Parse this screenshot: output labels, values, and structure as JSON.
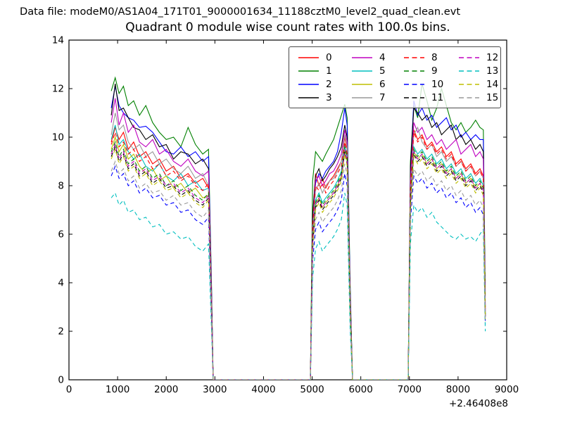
{
  "figure": {
    "background": "#ffffff",
    "header_text": "Data file: modeM0/AS1A04_171T01_9000001634_11188cztM0_level2_quad_clean.evt"
  },
  "chart_data": {
    "type": "line",
    "title": "Quadrant 0 module wise count rates with 100.0s bins.",
    "xlabel": "",
    "ylabel": "",
    "x_axis_offset_label": "+2.46408e8",
    "xlim": [
      0,
      9000
    ],
    "ylim": [
      0,
      14
    ],
    "xticks": [
      0,
      1000,
      2000,
      3000,
      4000,
      5000,
      6000,
      7000,
      8000,
      9000
    ],
    "yticks": [
      0,
      2,
      4,
      6,
      8,
      10,
      12,
      14
    ],
    "grid": false,
    "legend": {
      "position": "upper right",
      "columns": 4,
      "order": "column-major",
      "frame_alpha": 0.78
    },
    "axis_color": "#000000",
    "note": "16 CZT module count-rate light curves (counts/s) in three observation segments separated by zero-rate gaps; x is time in seconds offset by +2.46408e8.",
    "segments_x": {
      "a": [
        870,
        950,
        1030,
        1120,
        1220,
        1330,
        1450,
        1580,
        1720,
        1860,
        2000,
        2150,
        2300,
        2450,
        2600,
        2750,
        2870,
        2930,
        2965
      ],
      "b": [
        4965,
        5010,
        5070,
        5140,
        5210,
        5280,
        5360,
        5440,
        5520,
        5600,
        5670,
        5720,
        5780,
        5830
      ],
      "c": [
        6975,
        7020,
        7090,
        7170,
        7260,
        7360,
        7460,
        7560,
        7660,
        7760,
        7860,
        7960,
        8060,
        8160,
        8260,
        8360,
        8450,
        8520,
        8560
      ]
    },
    "series": [
      {
        "label": "0",
        "color": "#ff0000",
        "linestyle": "solid",
        "y": {
          "a": [
            9.8,
            10.4,
            9.9,
            10.2,
            9.5,
            9.8,
            9.2,
            9.4,
            8.9,
            9.1,
            8.6,
            8.8,
            8.3,
            8.5,
            8.1,
            8.3,
            7.9,
            3.2,
            0
          ],
          "b": [
            0,
            6.6,
            8.5,
            8.0,
            8.3,
            7.9,
            8.2,
            8.4,
            8.7,
            9.0,
            10.0,
            9.5,
            3.3,
            0
          ],
          "c": [
            0,
            8.0,
            10.3,
            9.9,
            10.1,
            9.6,
            9.8,
            9.4,
            9.6,
            9.2,
            9.4,
            8.9,
            9.1,
            8.7,
            8.9,
            8.5,
            8.7,
            8.4,
            2.8
          ]
        }
      },
      {
        "label": "1",
        "color": "#008000",
        "linestyle": "solid",
        "y": {
          "a": [
            11.9,
            12.45,
            11.8,
            12.1,
            11.3,
            11.5,
            10.9,
            11.3,
            10.6,
            10.2,
            9.9,
            10.0,
            9.6,
            10.4,
            9.7,
            9.3,
            9.5,
            4.0,
            0
          ],
          "b": [
            0,
            8.2,
            9.4,
            9.2,
            9.0,
            9.3,
            9.6,
            9.9,
            10.4,
            10.9,
            11.35,
            10.8,
            4.0,
            0
          ],
          "c": [
            0,
            9.0,
            11.3,
            10.8,
            12.2,
            11.5,
            10.7,
            11.2,
            12.0,
            11.3,
            10.6,
            10.3,
            10.6,
            10.2,
            10.4,
            10.7,
            10.4,
            10.3,
            3.5
          ]
        }
      },
      {
        "label": "2",
        "color": "#0000ff",
        "linestyle": "solid",
        "y": {
          "a": [
            11.2,
            12.1,
            11.3,
            11.0,
            10.8,
            10.7,
            10.4,
            10.45,
            10.2,
            9.8,
            9.4,
            9.3,
            9.6,
            9.2,
            9.4,
            9.0,
            9.2,
            3.8,
            0
          ],
          "b": [
            0,
            6.5,
            8.1,
            8.5,
            8.3,
            8.6,
            8.8,
            9.0,
            9.4,
            10.2,
            11.2,
            10.5,
            3.8,
            0
          ],
          "c": [
            0,
            8.6,
            11.5,
            10.9,
            11.2,
            10.7,
            10.9,
            10.4,
            10.6,
            10.8,
            10.3,
            10.5,
            10.0,
            10.2,
            9.9,
            10.1,
            9.9,
            9.9,
            2.6
          ]
        }
      },
      {
        "label": "3",
        "color": "#000000",
        "linestyle": "solid",
        "y": {
          "a": [
            10.9,
            12.2,
            11.1,
            11.2,
            10.8,
            10.4,
            10.3,
            9.9,
            10.1,
            9.6,
            9.7,
            9.1,
            9.4,
            9.3,
            8.9,
            9.1,
            8.7,
            3.6,
            0
          ],
          "b": [
            0,
            6.8,
            8.4,
            8.7,
            8.2,
            8.4,
            8.7,
            8.9,
            9.2,
            9.6,
            10.5,
            10.0,
            3.6,
            0
          ],
          "c": [
            0,
            8.8,
            11.2,
            11.0,
            10.7,
            10.9,
            10.4,
            10.6,
            10.1,
            10.3,
            10.5,
            9.9,
            10.1,
            9.7,
            9.9,
            9.5,
            9.7,
            9.4,
            3.0
          ]
        }
      },
      {
        "label": "4",
        "color": "#bf00bf",
        "linestyle": "solid",
        "y": {
          "a": [
            10.6,
            11.6,
            10.5,
            11.0,
            10.2,
            10.5,
            9.8,
            9.6,
            9.9,
            9.3,
            9.5,
            9.0,
            8.8,
            9.1,
            8.6,
            8.4,
            8.6,
            3.5,
            0
          ],
          "b": [
            0,
            6.4,
            8.2,
            8.4,
            8.0,
            8.2,
            8.5,
            8.6,
            8.9,
            9.3,
            10.3,
            9.8,
            3.5,
            0
          ],
          "c": [
            0,
            8.2,
            10.6,
            10.2,
            10.4,
            9.9,
            10.1,
            9.7,
            9.9,
            9.5,
            9.7,
            9.9,
            9.3,
            9.5,
            9.7,
            9.2,
            9.4,
            9.1,
            2.9
          ]
        }
      },
      {
        "label": "5",
        "color": "#00bfbf",
        "linestyle": "solid",
        "y": {
          "a": [
            9.9,
            10.5,
            9.7,
            9.9,
            9.4,
            9.1,
            9.3,
            8.8,
            8.6,
            8.9,
            8.4,
            8.2,
            8.5,
            8.0,
            8.2,
            7.8,
            7.9,
            3.1,
            0
          ],
          "b": [
            0,
            5.9,
            7.4,
            7.7,
            7.3,
            7.5,
            7.7,
            7.9,
            8.2,
            8.6,
            9.7,
            9.2,
            3.1,
            0
          ],
          "c": [
            0,
            7.5,
            9.6,
            9.3,
            9.5,
            9.1,
            9.3,
            8.9,
            9.1,
            8.7,
            8.9,
            8.5,
            8.7,
            8.3,
            8.5,
            8.1,
            8.3,
            8.0,
            2.7
          ]
        }
      },
      {
        "label": "6",
        "color": "#bfbf00",
        "linestyle": "solid",
        "y": {
          "a": [
            9.5,
            10.0,
            9.4,
            9.7,
            9.1,
            9.3,
            8.8,
            8.5,
            8.7,
            8.2,
            8.4,
            7.9,
            8.1,
            7.7,
            7.9,
            7.5,
            7.6,
            3.0,
            0
          ],
          "b": [
            0,
            5.7,
            7.2,
            7.5,
            7.1,
            7.3,
            7.5,
            7.7,
            8.0,
            8.4,
            9.5,
            9.0,
            3.0,
            0
          ],
          "c": [
            0,
            7.3,
            9.4,
            9.1,
            9.3,
            8.9,
            9.1,
            8.7,
            8.9,
            8.5,
            8.7,
            8.3,
            8.5,
            8.1,
            8.3,
            7.9,
            8.1,
            7.8,
            2.6
          ]
        }
      },
      {
        "label": "7",
        "color": "#999999",
        "linestyle": "solid",
        "y": {
          "a": [
            10.1,
            11.0,
            10.3,
            10.5,
            9.8,
            9.5,
            9.7,
            9.2,
            9.4,
            8.9,
            9.1,
            8.7,
            8.5,
            8.8,
            8.3,
            8.5,
            8.0,
            3.3,
            0
          ],
          "b": [
            0,
            6.2,
            7.8,
            8.1,
            7.7,
            8.0,
            8.2,
            8.3,
            8.6,
            9.0,
            10.1,
            9.6,
            3.3,
            0
          ],
          "c": [
            0,
            7.8,
            10.1,
            10.4,
            9.8,
            9.5,
            9.7,
            9.2,
            9.4,
            9.0,
            9.2,
            8.8,
            9.0,
            8.6,
            8.8,
            8.4,
            8.6,
            8.3,
            2.8
          ]
        }
      },
      {
        "label": "8",
        "color": "#ff0000",
        "linestyle": "dashed",
        "y": {
          "a": [
            9.7,
            10.2,
            9.6,
            9.8,
            9.3,
            9.5,
            9.0,
            9.2,
            8.7,
            8.9,
            8.4,
            8.6,
            8.2,
            8.4,
            8.0,
            7.8,
            8.1,
            3.1,
            0
          ],
          "b": [
            0,
            6.3,
            8.0,
            7.8,
            8.1,
            7.7,
            8.0,
            8.2,
            8.5,
            8.8,
            9.8,
            9.3,
            3.2,
            0
          ],
          "c": [
            0,
            7.9,
            10.2,
            9.8,
            10.0,
            9.5,
            9.7,
            9.3,
            9.5,
            9.1,
            9.3,
            8.8,
            9.0,
            8.6,
            8.8,
            8.4,
            8.6,
            8.3,
            2.8
          ]
        }
      },
      {
        "label": "9",
        "color": "#008000",
        "linestyle": "dashed",
        "y": {
          "a": [
            9.4,
            9.8,
            9.2,
            9.5,
            8.9,
            9.1,
            8.6,
            8.8,
            8.3,
            8.5,
            8.0,
            8.2,
            7.8,
            8.0,
            7.6,
            7.4,
            7.7,
            3.0,
            0
          ],
          "b": [
            0,
            5.8,
            7.3,
            7.6,
            7.2,
            7.4,
            7.6,
            7.8,
            8.1,
            8.5,
            9.6,
            9.1,
            3.0,
            0
          ],
          "c": [
            0,
            7.4,
            9.5,
            9.2,
            9.4,
            9.0,
            9.2,
            8.8,
            9.0,
            8.6,
            8.8,
            8.4,
            8.6,
            8.2,
            8.4,
            8.0,
            8.2,
            7.9,
            2.7
          ]
        }
      },
      {
        "label": "10",
        "color": "#0000ff",
        "linestyle": "dashed",
        "y": {
          "a": [
            8.4,
            8.8,
            8.3,
            8.5,
            8.0,
            8.2,
            7.7,
            7.9,
            7.5,
            7.6,
            7.2,
            7.3,
            6.9,
            7.0,
            6.6,
            6.4,
            6.7,
            2.6,
            0
          ],
          "b": [
            0,
            4.9,
            6.2,
            6.5,
            6.1,
            6.3,
            6.5,
            6.7,
            7.0,
            7.4,
            8.5,
            8.0,
            2.6,
            0
          ],
          "c": [
            0,
            6.5,
            8.4,
            8.1,
            8.3,
            7.9,
            8.1,
            7.7,
            7.9,
            7.5,
            7.7,
            7.3,
            7.5,
            7.1,
            7.3,
            6.9,
            7.1,
            6.8,
            2.3
          ]
        }
      },
      {
        "label": "11",
        "color": "#000000",
        "linestyle": "dashed",
        "y": {
          "a": [
            9.2,
            9.6,
            9.0,
            9.3,
            8.7,
            8.9,
            8.4,
            8.6,
            8.1,
            8.3,
            7.9,
            8.0,
            7.6,
            7.8,
            7.4,
            7.2,
            7.5,
            2.9,
            0
          ],
          "b": [
            0,
            5.6,
            7.1,
            7.4,
            7.0,
            7.2,
            7.4,
            7.6,
            7.9,
            8.3,
            9.4,
            8.9,
            2.9,
            0
          ],
          "c": [
            0,
            7.2,
            9.3,
            9.0,
            9.2,
            8.8,
            9.0,
            8.6,
            8.8,
            8.4,
            8.6,
            8.2,
            8.4,
            8.0,
            8.2,
            7.8,
            8.0,
            7.7,
            2.6
          ]
        }
      },
      {
        "label": "12",
        "color": "#bf00bf",
        "linestyle": "dashed",
        "y": {
          "a": [
            9.3,
            9.7,
            9.1,
            9.4,
            8.8,
            9.0,
            8.5,
            8.7,
            8.2,
            8.4,
            8.0,
            8.1,
            7.7,
            7.9,
            7.5,
            7.3,
            7.6,
            2.9,
            0
          ],
          "b": [
            0,
            5.7,
            7.2,
            7.5,
            7.1,
            7.3,
            7.5,
            7.7,
            8.0,
            8.4,
            9.5,
            9.0,
            2.9,
            0
          ],
          "c": [
            0,
            7.3,
            9.4,
            9.1,
            9.3,
            8.9,
            9.1,
            8.7,
            8.9,
            8.5,
            8.7,
            8.3,
            8.5,
            8.1,
            8.3,
            7.9,
            8.1,
            7.8,
            2.6
          ]
        }
      },
      {
        "label": "13",
        "color": "#00bfbf",
        "linestyle": "dashed",
        "y": {
          "a": [
            7.5,
            7.7,
            7.2,
            7.4,
            6.9,
            7.0,
            6.6,
            6.7,
            6.3,
            6.4,
            6.0,
            6.1,
            5.8,
            5.9,
            5.5,
            5.3,
            5.6,
            2.1,
            0
          ],
          "b": [
            0,
            4.2,
            5.4,
            5.7,
            5.3,
            5.5,
            5.7,
            5.9,
            6.2,
            6.6,
            7.7,
            7.2,
            2.1,
            0
          ],
          "c": [
            0,
            5.6,
            7.2,
            6.9,
            7.1,
            6.7,
            6.9,
            6.5,
            6.3,
            6.1,
            5.9,
            5.8,
            6.0,
            5.8,
            5.9,
            5.7,
            6.0,
            6.2,
            2.0
          ]
        }
      },
      {
        "label": "14",
        "color": "#bfbf00",
        "linestyle": "dashed",
        "y": {
          "a": [
            9.1,
            9.5,
            8.9,
            9.2,
            8.6,
            8.8,
            8.3,
            8.5,
            8.0,
            8.2,
            7.8,
            7.9,
            7.5,
            7.7,
            7.3,
            7.1,
            7.4,
            2.8,
            0
          ],
          "b": [
            0,
            5.5,
            7.0,
            7.3,
            6.9,
            7.1,
            7.3,
            7.5,
            7.8,
            8.2,
            9.3,
            8.8,
            2.8,
            0
          ],
          "c": [
            0,
            7.1,
            9.2,
            8.9,
            9.1,
            8.7,
            8.9,
            8.5,
            8.7,
            8.3,
            8.5,
            8.1,
            8.3,
            7.9,
            8.1,
            7.7,
            7.9,
            7.6,
            2.5
          ]
        }
      },
      {
        "label": "15",
        "color": "#999999",
        "linestyle": "dashed",
        "y": {
          "a": [
            8.6,
            9.0,
            8.5,
            8.7,
            8.2,
            8.4,
            7.9,
            8.1,
            7.7,
            7.8,
            7.4,
            7.6,
            7.2,
            7.3,
            6.9,
            6.7,
            7.0,
            2.7,
            0
          ],
          "b": [
            0,
            5.2,
            6.6,
            6.9,
            6.5,
            6.7,
            6.9,
            7.1,
            7.4,
            7.8,
            8.9,
            8.4,
            2.7,
            0
          ],
          "c": [
            0,
            6.8,
            8.7,
            8.4,
            8.6,
            8.2,
            8.4,
            8.0,
            8.2,
            7.8,
            8.0,
            7.6,
            7.8,
            7.4,
            7.6,
            7.2,
            7.4,
            7.1,
            2.4
          ]
        }
      }
    ]
  }
}
